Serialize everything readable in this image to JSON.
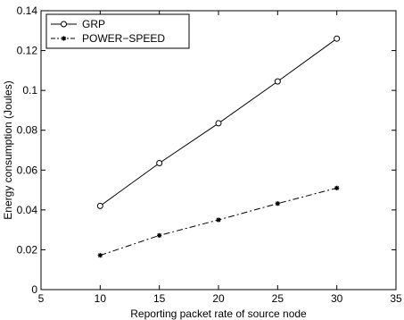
{
  "chart_data": {
    "type": "line",
    "title": "",
    "xlabel": "Reporting packet rate of source node",
    "ylabel": "Energy consumption (Joules)",
    "xlim": [
      5,
      35
    ],
    "ylim": [
      0,
      0.14
    ],
    "xticks": [
      "5",
      "10",
      "15",
      "20",
      "25",
      "30",
      "35"
    ],
    "yticks": [
      "0",
      "0.02",
      "0.04",
      "0.06",
      "0.08",
      "0.1",
      "0.12",
      "0.14"
    ],
    "grid": false,
    "legend_position": "top-left",
    "x": [
      10,
      15,
      20,
      25,
      30
    ],
    "series": [
      {
        "name": "GRP",
        "values": [
          0.042,
          0.0635,
          0.0835,
          0.1045,
          0.126
        ],
        "line_style": "solid",
        "marker": "open-circle",
        "color": "#000000"
      },
      {
        "name": "POWER−SPEED",
        "values": [
          0.0172,
          0.0272,
          0.035,
          0.0432,
          0.051
        ],
        "line_style": "dash-dot",
        "marker": "star",
        "color": "#000000"
      }
    ]
  }
}
